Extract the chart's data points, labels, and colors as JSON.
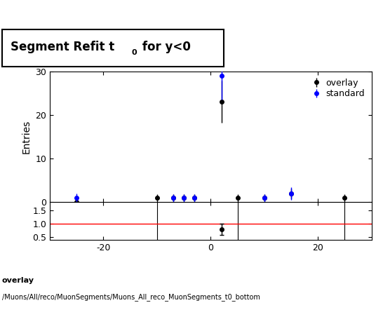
{
  "ylabel_main": "Entries",
  "xlim": [
    -30,
    30
  ],
  "ylim_main": [
    0,
    30
  ],
  "ylim_ratio": [
    0.4,
    1.8
  ],
  "yticks_main": [
    0,
    10,
    20,
    30
  ],
  "yticks_ratio": [
    0.5,
    1.0,
    1.5
  ],
  "xticks": [
    -20,
    0,
    20
  ],
  "overlay_color": "#000000",
  "standard_color": "#0000ff",
  "ratio_line_color": "#ff0000",
  "overlay_x": [
    -25,
    -10,
    -7,
    -5,
    -3,
    2,
    5,
    10,
    15,
    25
  ],
  "overlay_y": [
    0,
    1,
    1,
    1,
    1,
    23,
    1,
    1,
    2,
    1
  ],
  "overlay_yerr": [
    0.0,
    0.9,
    0.9,
    0.9,
    0.9,
    4.8,
    0.9,
    0.9,
    1.1,
    0.9
  ],
  "standard_x": [
    -25,
    -7,
    -5,
    -3,
    2,
    10,
    15
  ],
  "standard_y": [
    1,
    1,
    1,
    1,
    29,
    1,
    2
  ],
  "standard_yerr": [
    1.0,
    0.9,
    0.9,
    0.9,
    5.4,
    0.9,
    1.4
  ],
  "ratio_x": [
    2
  ],
  "ratio_y": [
    0.79
  ],
  "ratio_yerr": [
    0.22
  ],
  "ratio_vlines": [
    -10,
    5,
    25
  ],
  "footer_line1": "overlay",
  "footer_line2": "/Muons/All/reco/MuonSegments/Muons_All_reco_MuonSegments_t0_bottom",
  "legend_overlay": "overlay",
  "legend_standard": "standard"
}
